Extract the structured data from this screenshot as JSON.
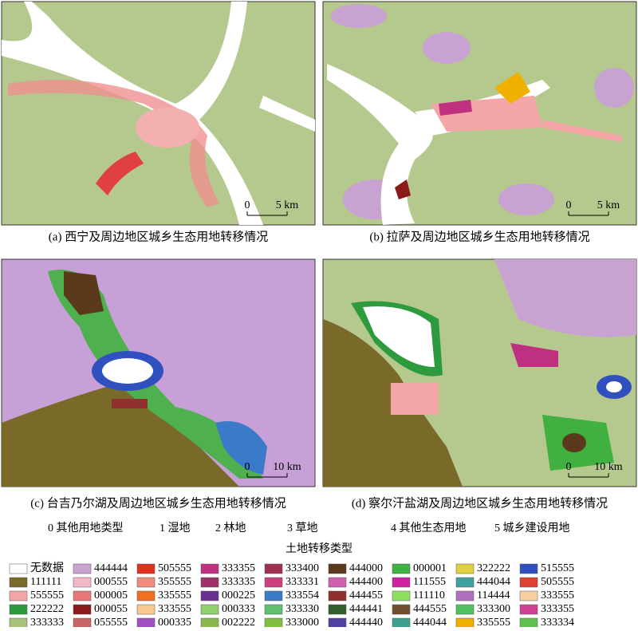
{
  "panels": [
    {
      "caption": "(a) 西宁及周边地区城乡生态用地转移情况",
      "scale": {
        "zero": "0",
        "distance": "5 km"
      }
    },
    {
      "caption": "(b) 拉萨及周边地区城乡生态用地转移情况",
      "scale": {
        "zero": "0",
        "distance": "5 km"
      }
    },
    {
      "caption": "(c) 台吉乃尔湖及周边地区城乡生态用地转移情况",
      "scale": {
        "zero": "0",
        "distance": "10 km"
      }
    },
    {
      "caption": "(d) 察尔汗盐湖及周边地区城乡生态用地转移情况",
      "scale": {
        "zero": "0",
        "distance": "10 km"
      }
    }
  ],
  "codes": [
    "0 其他用地类型",
    "1 湿地",
    "2 林地",
    "3 草地",
    "4 其他生态用地",
    "5 城乡建设用地"
  ],
  "legend": {
    "title": "土地转移类型",
    "entries": [
      {
        "label": "无数据",
        "color": "#ffffff"
      },
      {
        "label": "111111",
        "color": "#7a6a2a"
      },
      {
        "label": "555555",
        "color": "#f4a6a6"
      },
      {
        "label": "222222",
        "color": "#2e9a3e"
      },
      {
        "label": "333333",
        "color": "#a8c07a"
      },
      {
        "label": "444444",
        "color": "#c8a2d0"
      },
      {
        "label": "000555",
        "color": "#f2b8c6"
      },
      {
        "label": "000005",
        "color": "#e87878"
      },
      {
        "label": "000055",
        "color": "#8b1a1a"
      },
      {
        "label": "055555",
        "color": "#c86464"
      },
      {
        "label": "505555",
        "color": "#e03020"
      },
      {
        "label": "355555",
        "color": "#f08c7c"
      },
      {
        "label": "335555",
        "color": "#f07020"
      },
      {
        "label": "333555",
        "color": "#f8c890"
      },
      {
        "label": "000335",
        "color": "#a050c0"
      },
      {
        "label": "333355",
        "color": "#c03080"
      },
      {
        "label": "333335",
        "color": "#a0306a"
      },
      {
        "label": "000225",
        "color": "#6a3090"
      },
      {
        "label": "000333",
        "color": "#90d070"
      },
      {
        "label": "002222",
        "color": "#8ab850"
      },
      {
        "label": "333400",
        "color": "#a03050"
      },
      {
        "label": "333331",
        "color": "#d04080"
      },
      {
        "label": "333554",
        "color": "#3a7ac8"
      },
      {
        "label": "333330",
        "color": "#60c070"
      },
      {
        "label": "333000",
        "color": "#80c040"
      },
      {
        "label": "444000",
        "color": "#5a3a1a"
      },
      {
        "label": "444400",
        "color": "#d060b0"
      },
      {
        "label": "444455",
        "color": "#903030"
      },
      {
        "label": "444441",
        "color": "#306030"
      },
      {
        "label": "444440",
        "color": "#5040a0"
      },
      {
        "label": "000001",
        "color": "#40b040"
      },
      {
        "label": "111555",
        "color": "#d020a0"
      },
      {
        "label": "111110",
        "color": "#90e060"
      },
      {
        "label": "444555",
        "color": "#705030"
      },
      {
        "label": "444044",
        "color": "#40a090"
      },
      {
        "label": "322222",
        "color": "#e0d040"
      },
      {
        "label": "444044",
        "color": "#40a0a0"
      },
      {
        "label": "114444",
        "color": "#b070c0"
      },
      {
        "label": "333300",
        "color": "#50c060"
      },
      {
        "label": "335555",
        "color": "#f0b000"
      },
      {
        "label": "515555",
        "color": "#3050c0"
      },
      {
        "label": "505555",
        "color": "#e04030"
      },
      {
        "label": "333555",
        "color": "#f8d0a0"
      },
      {
        "label": "333355",
        "color": "#d04090"
      },
      {
        "label": "333334",
        "color": "#60c050"
      }
    ]
  }
}
